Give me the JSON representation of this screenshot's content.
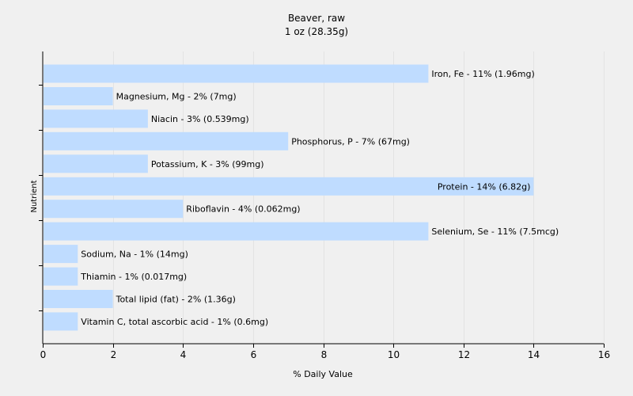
{
  "chart_data": {
    "type": "bar",
    "orientation": "horizontal",
    "title": "Beaver, raw",
    "subtitle": "1 oz (28.35g)",
    "xlabel": "% Daily Value",
    "ylabel": "Nutrient",
    "xlim": [
      0,
      16
    ],
    "xticks": [
      "0",
      "2",
      "4",
      "6",
      "8",
      "10",
      "12",
      "14",
      "16"
    ],
    "grid": true,
    "categories": [
      "Iron, Fe",
      "Magnesium, Mg",
      "Niacin",
      "Phosphorus, P",
      "Potassium, K",
      "Protein",
      "Riboflavin",
      "Selenium, Se",
      "Sodium, Na",
      "Thiamin",
      "Total lipid (fat)",
      "Vitamin C, total ascorbic acid"
    ],
    "values": [
      11,
      2,
      3,
      7,
      3,
      14,
      4,
      11,
      1,
      1,
      2,
      1
    ],
    "labels": [
      "Iron, Fe - 11% (1.96mg)",
      "Magnesium, Mg - 2% (7mg)",
      "Niacin - 3% (0.539mg)",
      "Phosphorus, P - 7% (67mg)",
      "Potassium, K - 3% (99mg)",
      "Protein - 14% (6.82g)",
      "Riboflavin - 4% (0.062mg)",
      "Selenium, Se - 11% (7.5mcg)",
      "Sodium, Na - 1% (14mg)",
      "Thiamin - 1% (0.017mg)",
      "Total lipid (fat) - 2% (1.36g)",
      "Vitamin C, total ascorbic acid - 1% (0.6mg)"
    ],
    "colors": {
      "bar": "#bfdcff",
      "grid": "#e3e3e3",
      "axis": "#000000",
      "background": "#f0f0f0"
    }
  }
}
